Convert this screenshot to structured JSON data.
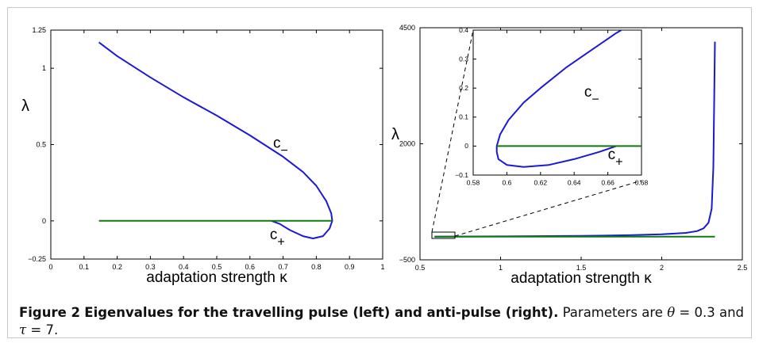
{
  "figure": {
    "label": "Figure 2",
    "title": "Eigenvalues for the travelling pulse (left) and anti-pulse (right).",
    "parameters_text": "Parameters are",
    "theta_symbol": "θ",
    "theta_value": "= 0.3",
    "and_text": "and",
    "tau_symbol": "τ",
    "tau_value": "= 7."
  },
  "chart_data": [
    {
      "type": "line",
      "xlabel": "adaptation strength κ",
      "ylabel": "λ",
      "xlim": [
        0,
        1
      ],
      "ylim": [
        -0.25,
        1.25
      ],
      "xticks": [
        "0",
        "0.1",
        "0.2",
        "0.3",
        "0.4",
        "0.5",
        "0.6",
        "0.7",
        "0.8",
        "0.9",
        "1"
      ],
      "yticks": [
        "−0.25",
        "0",
        "0.5",
        "1",
        "1.25"
      ],
      "series": [
        {
          "name": "c_",
          "color": "#1a1ad6",
          "points": [
            [
              0.145,
              1.17
            ],
            [
              0.2,
              1.08
            ],
            [
              0.3,
              0.94
            ],
            [
              0.4,
              0.81
            ],
            [
              0.5,
              0.69
            ],
            [
              0.6,
              0.56
            ],
            [
              0.7,
              0.42
            ],
            [
              0.76,
              0.32
            ],
            [
              0.8,
              0.23
            ],
            [
              0.83,
              0.13
            ],
            [
              0.845,
              0.05
            ],
            [
              0.848,
              0.0
            ],
            [
              0.84,
              -0.05
            ],
            [
              0.82,
              -0.1
            ],
            [
              0.79,
              -0.115
            ],
            [
              0.76,
              -0.1
            ],
            [
              0.72,
              -0.06
            ],
            [
              0.69,
              -0.02
            ],
            [
              0.665,
              0.0
            ]
          ]
        },
        {
          "name": "c+",
          "color": "#0f7a0f",
          "points": [
            [
              0.145,
              0.0
            ],
            [
              0.848,
              0.0
            ]
          ]
        }
      ],
      "labels": [
        {
          "text": "c",
          "sub": "−",
          "x": 0.67,
          "y": 0.48
        },
        {
          "text": "c",
          "sub": "+",
          "x": 0.66,
          "y": -0.12
        }
      ]
    },
    {
      "type": "line",
      "xlabel": "adaptation strength κ",
      "ylabel": "λ",
      "xlim": [
        0.5,
        2.5
      ],
      "ylim": [
        -500,
        4500
      ],
      "xticks": [
        "0.5",
        "1",
        "1.5",
        "2",
        "2.5"
      ],
      "yticks": [
        "−500",
        "2000",
        "4500"
      ],
      "series": [
        {
          "name": "c_",
          "color": "#1a1ad6",
          "points": [
            [
              0.59,
              0.0
            ],
            [
              1.0,
              5
            ],
            [
              1.5,
              15
            ],
            [
              1.8,
              30
            ],
            [
              2.0,
              50
            ],
            [
              2.15,
              80
            ],
            [
              2.22,
              120
            ],
            [
              2.26,
              180
            ],
            [
              2.29,
              300
            ],
            [
              2.31,
              600
            ],
            [
              2.32,
              1500
            ],
            [
              2.33,
              4200
            ]
          ]
        },
        {
          "name": "c+",
          "color": "#0f7a0f",
          "points": [
            [
              0.59,
              0.0
            ],
            [
              2.33,
              0.0
            ]
          ]
        }
      ],
      "inset": {
        "xlim": [
          0.58,
          0.68
        ],
        "ylim": [
          -0.1,
          0.4
        ],
        "xticks": [
          "0.58",
          "0.6",
          "0.62",
          "0.64",
          "0.66",
          "0.68"
        ],
        "yticks": [
          "−0.1",
          "0",
          "0.1",
          "0.2",
          "0.3",
          "0.4"
        ],
        "series": [
          {
            "name": "c_",
            "color": "#1a1ad6",
            "points": [
              [
                0.665,
                0.0
              ],
              [
                0.655,
                -0.02
              ],
              [
                0.64,
                -0.045
              ],
              [
                0.625,
                -0.065
              ],
              [
                0.61,
                -0.072
              ],
              [
                0.6,
                -0.065
              ],
              [
                0.595,
                -0.045
              ],
              [
                0.594,
                -0.02
              ],
              [
                0.594,
                0.0
              ],
              [
                0.596,
                0.04
              ],
              [
                0.601,
                0.09
              ],
              [
                0.61,
                0.15
              ],
              [
                0.62,
                0.2
              ],
              [
                0.635,
                0.27
              ],
              [
                0.65,
                0.33
              ],
              [
                0.665,
                0.39
              ],
              [
                0.668,
                0.4
              ]
            ]
          },
          {
            "name": "c+",
            "color": "#0f7a0f",
            "points": [
              [
                0.594,
                0.0
              ],
              [
                0.68,
                0.0
              ]
            ]
          }
        ],
        "labels": [
          {
            "text": "c",
            "sub": "−",
            "x": 0.646,
            "y": 0.17
          },
          {
            "text": "c",
            "sub": "+",
            "x": 0.66,
            "y": -0.045
          }
        ]
      }
    }
  ]
}
